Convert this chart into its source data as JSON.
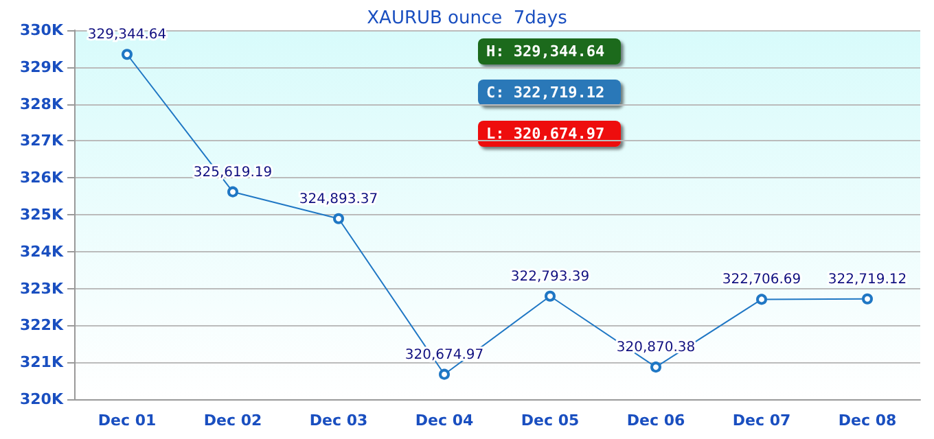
{
  "chart_data": {
    "type": "line",
    "title": "XAURUB ounce  7days",
    "categories": [
      "Dec 01",
      "Dec 02",
      "Dec 03",
      "Dec 04",
      "Dec 05",
      "Dec 06",
      "Dec 07",
      "Dec 08"
    ],
    "series": [
      {
        "color": "#1f77c4",
        "values": [
          329344.64,
          325619.19,
          324893.37,
          320674.97,
          322793.39,
          320870.38,
          322706.69,
          322719.12
        ],
        "value_labels": [
          "329,344.64",
          "325,619.19",
          "324,893.37",
          "320,674.97",
          "322,793.39",
          "320,870.38",
          "322,706.69",
          "322,719.12"
        ]
      }
    ],
    "ylim": [
      320000,
      330000
    ],
    "yticks": [
      {
        "value": 320000,
        "label": "320K"
      },
      {
        "value": 321000,
        "label": "321K"
      },
      {
        "value": 322000,
        "label": "322K"
      },
      {
        "value": 323000,
        "label": "323K"
      },
      {
        "value": 324000,
        "label": "324K"
      },
      {
        "value": 325000,
        "label": "325K"
      },
      {
        "value": 326000,
        "label": "326K"
      },
      {
        "value": 327000,
        "label": "327K"
      },
      {
        "value": 328000,
        "label": "328K"
      },
      {
        "value": 329000,
        "label": "329K"
      },
      {
        "value": 330000,
        "label": "330K"
      }
    ],
    "grid": "y",
    "marker": "circle",
    "line_style": "solid",
    "annotations": [
      "H: 329,344.64",
      "C: 322,719.12",
      "L: 320,674.97"
    ]
  }
}
